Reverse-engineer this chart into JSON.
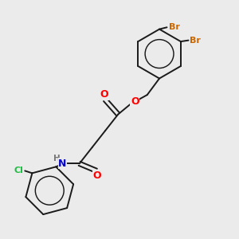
{
  "background_color": "#ebebeb",
  "bond_color": "#1a1a1a",
  "atom_colors": {
    "O": "#ff0000",
    "N": "#0000cc",
    "Br": "#cc6600",
    "Cl": "#22bb44",
    "H": "#777777"
  },
  "figsize": [
    3.0,
    3.0
  ],
  "dpi": 100
}
